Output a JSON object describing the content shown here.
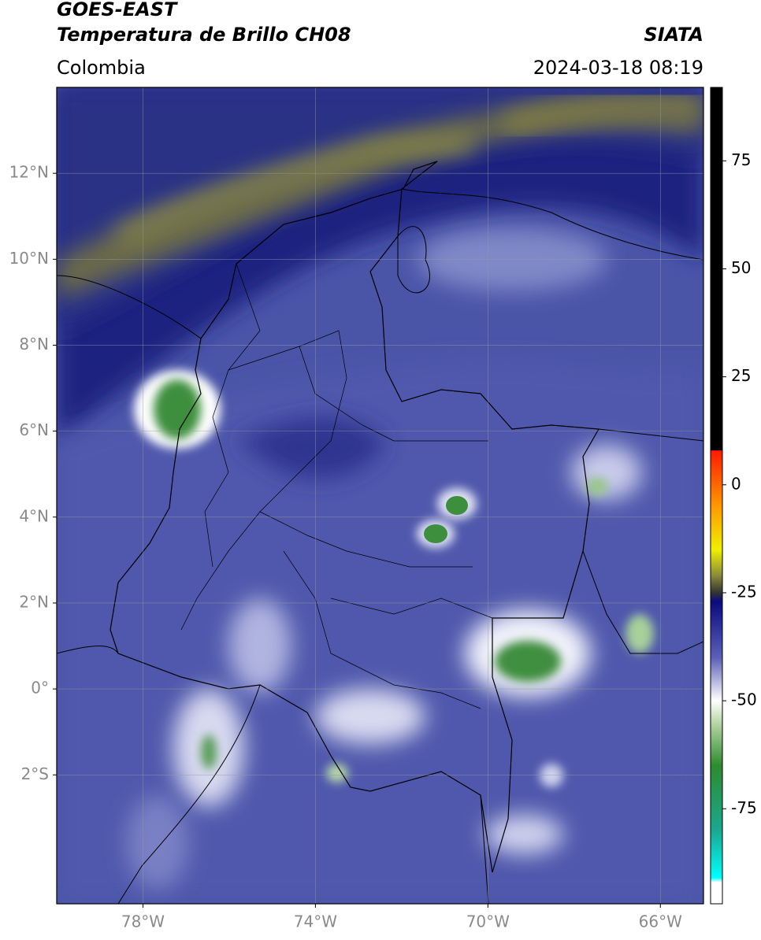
{
  "map": {
    "title": [
      "GOES-EAST",
      "Temperatura de Brillo CH08"
    ],
    "source": "SIATA",
    "region": "Colombia",
    "datetime": "2024-03-18 08:19",
    "xlim": [
      -80,
      -65
    ],
    "xticks": [
      {
        "value": -78,
        "label": "78°W"
      },
      {
        "value": -74,
        "label": "74°W"
      },
      {
        "value": -70,
        "label": "70°W"
      },
      {
        "value": -66,
        "label": "66°W"
      }
    ],
    "ylim": [
      -5,
      14
    ],
    "yticks": [
      {
        "value": -2,
        "label": "2°S"
      },
      {
        "value": 0,
        "label": "0°"
      },
      {
        "value": 2,
        "label": "2°N"
      },
      {
        "value": 4,
        "label": "4°N"
      },
      {
        "value": 6,
        "label": "6°N"
      },
      {
        "value": 8,
        "label": "8°N"
      },
      {
        "value": 10,
        "label": "10°N"
      },
      {
        "value": 12,
        "label": "12°N"
      }
    ],
    "grid": true,
    "colorbar": {
      "lim": [
        -97,
        92
      ],
      "ticks": [
        -75,
        -50,
        -25,
        0,
        25,
        50,
        75
      ],
      "stops": [
        {
          "value": 92,
          "color": "#000000"
        },
        {
          "value": 8,
          "color": "#000000"
        },
        {
          "value": 7.9,
          "color": "#ff1a00"
        },
        {
          "value": -5,
          "color": "#ff9900"
        },
        {
          "value": -15,
          "color": "#f0f000"
        },
        {
          "value": -21,
          "color": "#8a8a3a"
        },
        {
          "value": -25,
          "color": "#333333"
        },
        {
          "value": -27,
          "color": "#0a0a80"
        },
        {
          "value": -40,
          "color": "#5a60b8"
        },
        {
          "value": -50,
          "color": "#ffffff"
        },
        {
          "value": -55,
          "color": "#b8d8a8"
        },
        {
          "value": -65,
          "color": "#2e8b2e"
        },
        {
          "value": -80,
          "color": "#1aa890"
        },
        {
          "value": -91,
          "color": "#00ffff"
        },
        {
          "value": -92,
          "color": "#ffffff"
        },
        {
          "value": -97,
          "color": "#ffffff"
        }
      ]
    }
  }
}
